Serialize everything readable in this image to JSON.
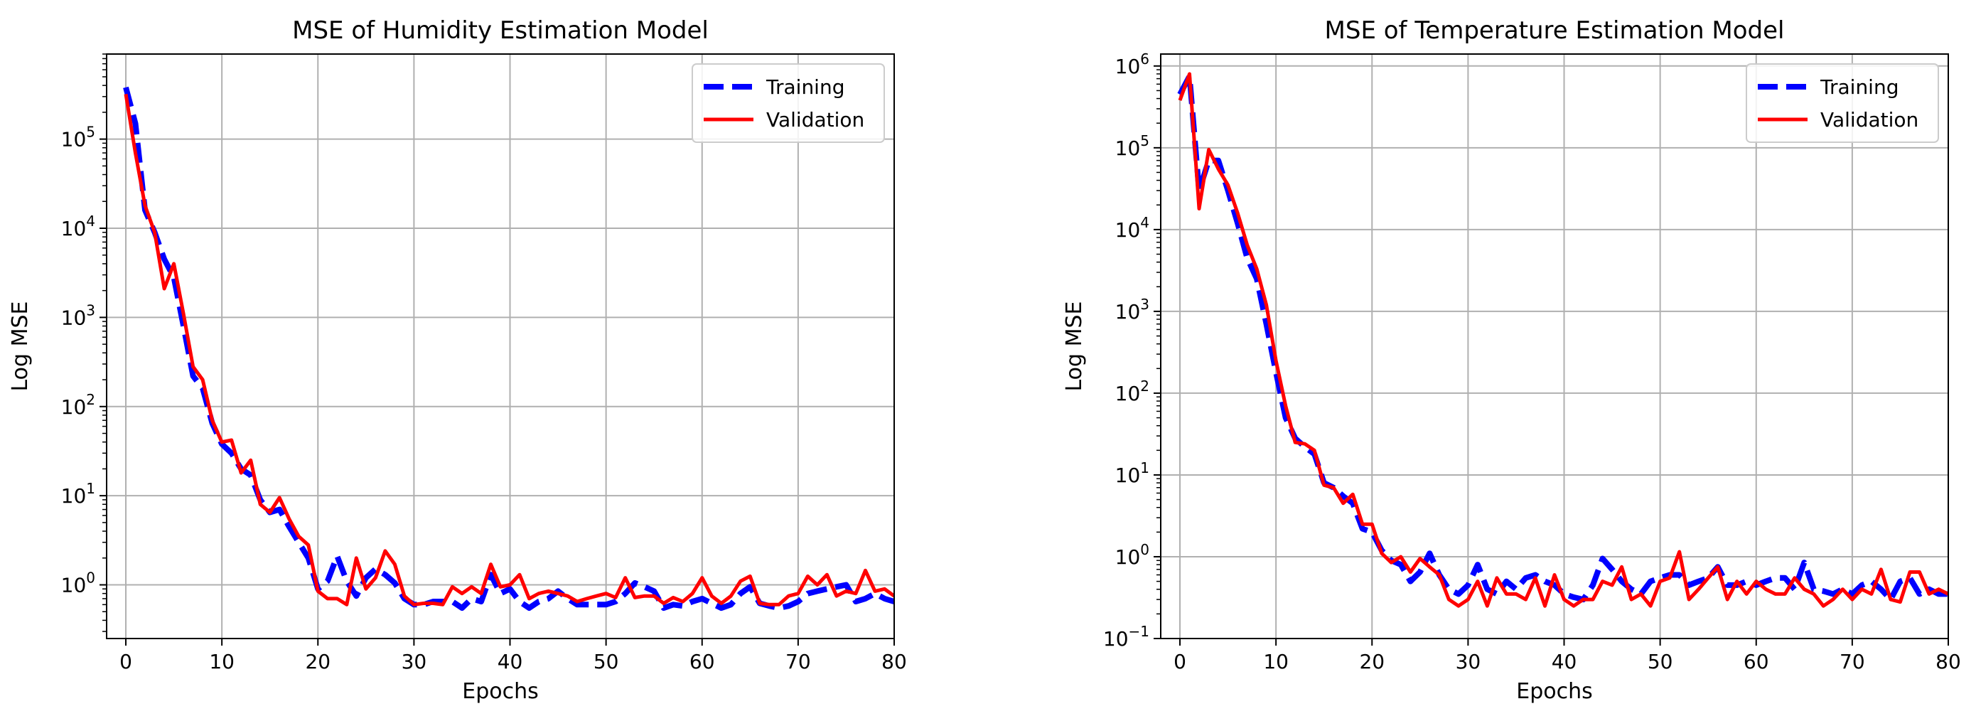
{
  "chart_data": [
    {
      "type": "line",
      "title": "MSE of Humidity Estimation Model",
      "xlabel": "Epochs",
      "ylabel": "Log MSE",
      "yscale": "log",
      "xlim": [
        -2,
        80
      ],
      "ylim": [
        0.25,
        900000
      ],
      "grid": true,
      "legend_position": "top-right",
      "x_ticks": [
        0,
        10,
        20,
        30,
        40,
        50,
        60,
        70,
        80
      ],
      "y_ticks": [
        {
          "value": 1,
          "label": "10^0"
        },
        {
          "value": 10,
          "label": "10^1"
        },
        {
          "value": 100,
          "label": "10^2"
        },
        {
          "value": 1000,
          "label": "10^3"
        },
        {
          "value": 10000,
          "label": "10^4"
        },
        {
          "value": 100000,
          "label": "10^5"
        }
      ],
      "series": [
        {
          "name": "Training",
          "color": "#0000ff",
          "style": "dashed",
          "x": [
            0,
            1,
            2,
            3,
            4,
            5,
            6,
            7,
            8,
            9,
            10,
            11,
            12,
            13,
            14,
            15,
            16,
            17,
            18,
            19,
            20,
            21,
            22,
            23,
            24,
            25,
            26,
            27,
            28,
            29,
            30,
            31,
            32,
            33,
            34,
            35,
            36,
            37,
            38,
            39,
            40,
            41,
            42,
            43,
            44,
            45,
            46,
            47,
            48,
            49,
            50,
            51,
            52,
            53,
            54,
            55,
            56,
            57,
            58,
            59,
            60,
            61,
            62,
            63,
            64,
            65,
            66,
            67,
            68,
            69,
            70,
            71,
            72,
            73,
            74,
            75,
            76,
            77,
            78,
            79,
            80
          ],
          "values": [
            380000,
            150000,
            16000,
            9000,
            4500,
            2800,
            800,
            220,
            160,
            65,
            38,
            30,
            20,
            17,
            9,
            6.5,
            7,
            4.5,
            3,
            2,
            0.9,
            1.1,
            2.1,
            1.1,
            0.75,
            1.2,
            1.5,
            1.3,
            1.05,
            0.7,
            0.6,
            0.6,
            0.65,
            0.65,
            0.65,
            0.55,
            0.7,
            0.65,
            1.3,
            0.8,
            0.9,
            0.65,
            0.55,
            0.65,
            0.7,
            0.85,
            0.7,
            0.6,
            0.6,
            0.6,
            0.6,
            0.65,
            0.8,
            1.05,
            0.95,
            0.85,
            0.55,
            0.6,
            0.58,
            0.65,
            0.7,
            0.62,
            0.55,
            0.6,
            0.8,
            0.95,
            0.62,
            0.58,
            0.55,
            0.58,
            0.65,
            0.8,
            0.85,
            0.9,
            0.95,
            1.0,
            0.65,
            0.7,
            0.8,
            0.7,
            0.65
          ]
        },
        {
          "name": "Validation",
          "color": "#ff0000",
          "style": "solid",
          "x": [
            0,
            1,
            2,
            3,
            4,
            5,
            6,
            7,
            8,
            9,
            10,
            11,
            12,
            13,
            14,
            15,
            16,
            17,
            18,
            19,
            20,
            21,
            22,
            23,
            24,
            25,
            26,
            27,
            28,
            29,
            30,
            31,
            32,
            33,
            34,
            35,
            36,
            37,
            38,
            39,
            40,
            41,
            42,
            43,
            44,
            45,
            46,
            47,
            48,
            49,
            50,
            51,
            52,
            53,
            54,
            55,
            56,
            57,
            58,
            59,
            60,
            61,
            62,
            63,
            64,
            65,
            66,
            67,
            68,
            69,
            70,
            71,
            72,
            73,
            74,
            75,
            76,
            77,
            78,
            79,
            80
          ],
          "values": [
            320000,
            70000,
            18000,
            9000,
            2100,
            4000,
            1100,
            280,
            200,
            70,
            40,
            42,
            18,
            25,
            8,
            6.5,
            9.5,
            5.5,
            3.5,
            2.8,
            0.85,
            0.7,
            0.7,
            0.6,
            2.0,
            0.9,
            1.2,
            2.4,
            1.7,
            0.75,
            0.6,
            0.62,
            0.62,
            0.6,
            0.95,
            0.8,
            0.95,
            0.8,
            1.7,
            0.95,
            1.0,
            1.3,
            0.7,
            0.8,
            0.85,
            0.8,
            0.75,
            0.65,
            0.7,
            0.75,
            0.8,
            0.72,
            1.2,
            0.72,
            0.75,
            0.75,
            0.62,
            0.72,
            0.65,
            0.8,
            1.2,
            0.75,
            0.62,
            0.75,
            1.1,
            1.25,
            0.62,
            0.6,
            0.6,
            0.75,
            0.8,
            1.25,
            1.0,
            1.3,
            0.75,
            0.85,
            0.8,
            1.45,
            0.85,
            0.9,
            0.75
          ]
        }
      ]
    },
    {
      "type": "line",
      "title": "MSE of Temperature Estimation Model",
      "xlabel": "Epochs",
      "ylabel": "Log MSE",
      "yscale": "log",
      "xlim": [
        -2,
        80
      ],
      "ylim": [
        0.1,
        1400000
      ],
      "grid": true,
      "legend_position": "top-right",
      "x_ticks": [
        0,
        10,
        20,
        30,
        40,
        50,
        60,
        70,
        80
      ],
      "y_ticks": [
        {
          "value": 0.1,
          "label": "10^-1"
        },
        {
          "value": 1,
          "label": "10^0"
        },
        {
          "value": 10,
          "label": "10^1"
        },
        {
          "value": 100,
          "label": "10^2"
        },
        {
          "value": 1000,
          "label": "10^3"
        },
        {
          "value": 10000,
          "label": "10^4"
        },
        {
          "value": 100000,
          "label": "10^5"
        },
        {
          "value": 1000000,
          "label": "10^6"
        }
      ],
      "series": [
        {
          "name": "Training",
          "color": "#0000ff",
          "style": "dashed",
          "x": [
            0,
            1,
            2,
            3,
            4,
            5,
            6,
            7,
            8,
            9,
            10,
            11,
            12,
            13,
            14,
            15,
            16,
            17,
            18,
            19,
            20,
            21,
            22,
            23,
            24,
            25,
            26,
            27,
            28,
            29,
            30,
            31,
            32,
            33,
            34,
            35,
            36,
            37,
            38,
            39,
            40,
            41,
            42,
            43,
            44,
            45,
            46,
            47,
            48,
            49,
            50,
            51,
            52,
            53,
            54,
            55,
            56,
            57,
            58,
            59,
            60,
            61,
            62,
            63,
            64,
            65,
            66,
            67,
            68,
            69,
            70,
            71,
            72,
            73,
            74,
            75,
            76,
            77,
            78,
            79,
            80
          ],
          "values": [
            450000,
            750000,
            30000,
            70000,
            70000,
            30000,
            12000,
            4500,
            2500,
            700,
            180,
            50,
            28,
            22,
            18,
            8,
            7,
            5.5,
            4.5,
            2.2,
            2.0,
            1.2,
            0.9,
            0.8,
            0.5,
            0.65,
            1.1,
            0.6,
            0.4,
            0.35,
            0.45,
            0.8,
            0.4,
            0.35,
            0.5,
            0.4,
            0.55,
            0.6,
            0.5,
            0.45,
            0.35,
            0.32,
            0.3,
            0.45,
            0.95,
            0.7,
            0.5,
            0.4,
            0.35,
            0.5,
            0.55,
            0.6,
            0.6,
            0.45,
            0.5,
            0.55,
            0.75,
            0.45,
            0.45,
            0.5,
            0.45,
            0.5,
            0.55,
            0.55,
            0.4,
            0.85,
            0.4,
            0.38,
            0.35,
            0.4,
            0.35,
            0.45,
            0.5,
            0.4,
            0.3,
            0.5,
            0.55,
            0.35,
            0.4,
            0.35,
            0.35
          ]
        },
        {
          "name": "Validation",
          "color": "#ff0000",
          "style": "solid",
          "x": [
            0,
            1,
            2,
            3,
            4,
            5,
            6,
            7,
            8,
            9,
            10,
            11,
            12,
            13,
            14,
            15,
            16,
            17,
            18,
            19,
            20,
            21,
            22,
            23,
            24,
            25,
            26,
            27,
            28,
            29,
            30,
            31,
            32,
            33,
            34,
            35,
            36,
            37,
            38,
            39,
            40,
            41,
            42,
            43,
            44,
            45,
            46,
            47,
            48,
            49,
            50,
            51,
            52,
            53,
            54,
            55,
            56,
            57,
            58,
            59,
            60,
            61,
            62,
            63,
            64,
            65,
            66,
            67,
            68,
            69,
            70,
            71,
            72,
            73,
            74,
            75,
            76,
            77,
            78,
            79,
            80
          ],
          "values": [
            380000,
            800000,
            18000,
            95000,
            55000,
            35000,
            16000,
            6500,
            3300,
            1200,
            250,
            70,
            25,
            24,
            20,
            7.5,
            7,
            4.5,
            5.8,
            2.5,
            2.5,
            1.1,
            0.85,
            1.0,
            0.65,
            0.95,
            0.75,
            0.6,
            0.3,
            0.25,
            0.3,
            0.5,
            0.25,
            0.55,
            0.35,
            0.35,
            0.3,
            0.55,
            0.25,
            0.6,
            0.3,
            0.25,
            0.3,
            0.3,
            0.5,
            0.45,
            0.75,
            0.3,
            0.35,
            0.25,
            0.5,
            0.55,
            1.15,
            0.3,
            0.4,
            0.55,
            0.75,
            0.3,
            0.5,
            0.35,
            0.5,
            0.4,
            0.35,
            0.35,
            0.55,
            0.4,
            0.35,
            0.25,
            0.3,
            0.4,
            0.3,
            0.4,
            0.35,
            0.7,
            0.3,
            0.28,
            0.65,
            0.65,
            0.35,
            0.4,
            0.35
          ]
        }
      ]
    }
  ]
}
